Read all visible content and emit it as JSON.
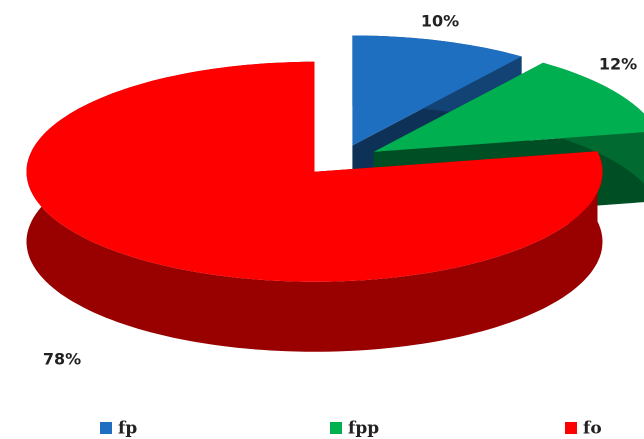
{
  "chart_data": {
    "type": "pie",
    "categories": [
      "fp",
      "fpp",
      "fo"
    ],
    "values": [
      10,
      12,
      78
    ],
    "value_labels": [
      "10%",
      "12%",
      "78%"
    ],
    "colors": [
      "#1f6fc1",
      "#00b050",
      "#ff0000"
    ],
    "legend": "bottom"
  }
}
